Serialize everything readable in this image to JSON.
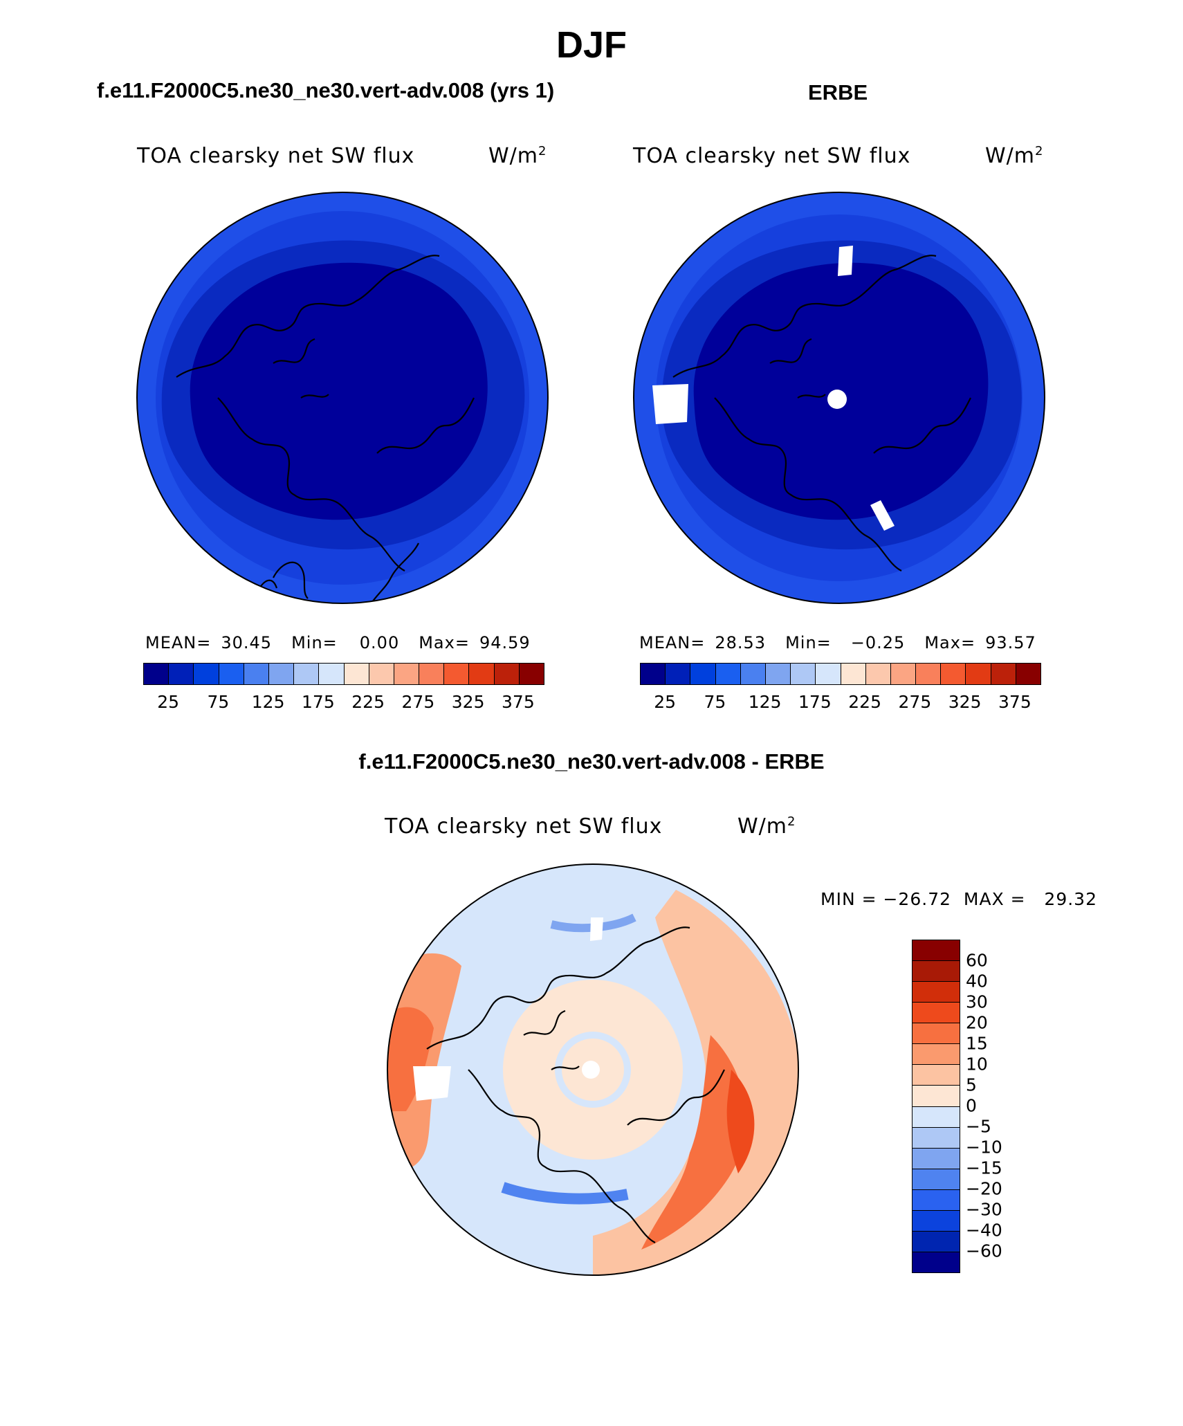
{
  "title": "DJF",
  "panels": [
    {
      "title": "f.e11.F2000C5.ne30_ne30.vert-adv.008 (yrs 1)",
      "variable": "TOA clearsky net SW flux",
      "units": "W/m",
      "units_sup": "2",
      "stats": {
        "mean_label": "MEAN=",
        "mean": "30.45",
        "min_label": "Min=",
        "min": "0.00",
        "max_label": "Max=",
        "max": "94.59"
      }
    },
    {
      "title": "ERBE",
      "variable": "TOA clearsky net SW flux",
      "units": "W/m",
      "units_sup": "2",
      "stats": {
        "mean_label": "MEAN=",
        "mean": "28.53",
        "min_label": "Min=",
        "min": "−0.25",
        "max_label": "Max=",
        "max": "93.57"
      }
    }
  ],
  "diff_panel": {
    "title": "f.e11.F2000C5.ne30_ne30.vert-adv.008 - ERBE",
    "variable": "TOA clearsky net SW flux",
    "units": "W/m",
    "units_sup": "2",
    "minmax": "MIN = −26.72  MAX =   29.32"
  },
  "colorbar_abs": {
    "colors": [
      "#00008b",
      "#0020b8",
      "#0040dd",
      "#1a5ff0",
      "#4a80f0",
      "#7fa5f0",
      "#aec8f5",
      "#d6e6fb",
      "#fde6d4",
      "#fcc8ad",
      "#fba583",
      "#f9805b",
      "#f45a30",
      "#e23b14",
      "#bc210a",
      "#880000"
    ],
    "tick_labels": [
      "25",
      "75",
      "125",
      "175",
      "225",
      "275",
      "325",
      "375"
    ]
  },
  "colorbar_diff": {
    "colors": [
      "#880000",
      "#a81a06",
      "#d12e0a",
      "#ee4a1c",
      "#f77040",
      "#fa9a6e",
      "#fcc3a2",
      "#fde6d4",
      "#d6e6fb",
      "#aec8f5",
      "#7fa5f0",
      "#4f83f0",
      "#2a62f0",
      "#0c43dd",
      "#0025b0",
      "#00008b"
    ],
    "tick_labels": [
      "60",
      "40",
      "30",
      "20",
      "15",
      "10",
      "5",
      "0",
      "−5",
      "−10",
      "−15",
      "−20",
      "−30",
      "−40",
      "−60"
    ]
  },
  "legend_colors": {
    "polar_core": "#00008b",
    "ring_1": "#0a2ac0",
    "ring_2": "#0f3ee0",
    "ring_3": "#2050ee",
    "land_outline": "#000000",
    "missing": "#ffffff"
  }
}
